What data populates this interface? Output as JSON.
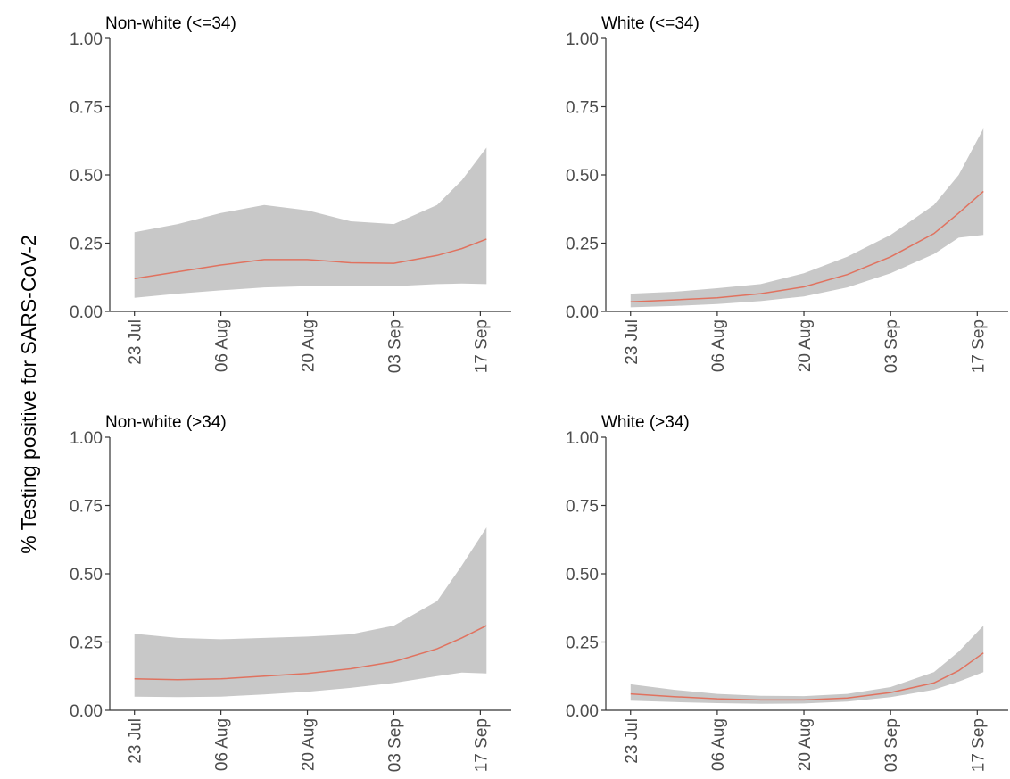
{
  "ylabel": "% Testing positive for SARS-CoV-2",
  "chart_data": [
    {
      "type": "area",
      "title": "Non-white (<=34)",
      "ylim": [
        0,
        1
      ],
      "yticks": [
        "0.00",
        "0.25",
        "0.50",
        "0.75",
        "1.00"
      ],
      "xlim": [
        "2020-07-19",
        "2020-09-22"
      ],
      "xticks": [
        "23 Jul",
        "06 Aug",
        "20 Aug",
        "03 Sep",
        "17 Sep"
      ],
      "x": [
        "2020-07-23",
        "2020-07-30",
        "2020-08-06",
        "2020-08-13",
        "2020-08-20",
        "2020-08-27",
        "2020-09-03",
        "2020-09-10",
        "2020-09-14",
        "2020-09-18"
      ],
      "fit": [
        0.12,
        0.145,
        0.17,
        0.19,
        0.19,
        0.178,
        0.176,
        0.205,
        0.23,
        0.265
      ],
      "lower": [
        0.05,
        0.065,
        0.077,
        0.088,
        0.092,
        0.092,
        0.092,
        0.1,
        0.102,
        0.1
      ],
      "upper": [
        0.29,
        0.32,
        0.36,
        0.39,
        0.37,
        0.33,
        0.32,
        0.39,
        0.48,
        0.6
      ]
    },
    {
      "type": "area",
      "title": "White (<=34)",
      "ylim": [
        0,
        1
      ],
      "yticks": [
        "0.00",
        "0.25",
        "0.50",
        "0.75",
        "1.00"
      ],
      "xlim": [
        "2020-07-19",
        "2020-09-22"
      ],
      "xticks": [
        "23 Jul",
        "06 Aug",
        "20 Aug",
        "03 Sep",
        "17 Sep"
      ],
      "x": [
        "2020-07-23",
        "2020-07-30",
        "2020-08-06",
        "2020-08-13",
        "2020-08-20",
        "2020-08-27",
        "2020-09-03",
        "2020-09-10",
        "2020-09-14",
        "2020-09-18"
      ],
      "fit": [
        0.035,
        0.042,
        0.05,
        0.065,
        0.09,
        0.135,
        0.2,
        0.285,
        0.36,
        0.44
      ],
      "lower": [
        0.015,
        0.02,
        0.027,
        0.038,
        0.055,
        0.088,
        0.14,
        0.21,
        0.27,
        0.28
      ],
      "upper": [
        0.065,
        0.072,
        0.085,
        0.1,
        0.14,
        0.2,
        0.28,
        0.39,
        0.5,
        0.67
      ]
    },
    {
      "type": "area",
      "title": "Non-white (>34)",
      "ylim": [
        0,
        1
      ],
      "yticks": [
        "0.00",
        "0.25",
        "0.50",
        "0.75",
        "1.00"
      ],
      "xlim": [
        "2020-07-19",
        "2020-09-22"
      ],
      "xticks": [
        "23 Jul",
        "06 Aug",
        "20 Aug",
        "03 Sep",
        "17 Sep"
      ],
      "x": [
        "2020-07-23",
        "2020-07-30",
        "2020-08-06",
        "2020-08-13",
        "2020-08-20",
        "2020-08-27",
        "2020-09-03",
        "2020-09-10",
        "2020-09-14",
        "2020-09-18"
      ],
      "fit": [
        0.115,
        0.112,
        0.115,
        0.125,
        0.135,
        0.152,
        0.178,
        0.225,
        0.265,
        0.31
      ],
      "lower": [
        0.05,
        0.048,
        0.05,
        0.058,
        0.068,
        0.082,
        0.1,
        0.125,
        0.138,
        0.135
      ],
      "upper": [
        0.28,
        0.265,
        0.26,
        0.265,
        0.27,
        0.278,
        0.31,
        0.4,
        0.53,
        0.67
      ]
    },
    {
      "type": "area",
      "title": "White (>34)",
      "ylim": [
        0,
        1
      ],
      "yticks": [
        "0.00",
        "0.25",
        "0.50",
        "0.75",
        "1.00"
      ],
      "xlim": [
        "2020-07-19",
        "2020-09-22"
      ],
      "xticks": [
        "23 Jul",
        "06 Aug",
        "20 Aug",
        "03 Sep",
        "17 Sep"
      ],
      "x": [
        "2020-07-23",
        "2020-07-30",
        "2020-08-06",
        "2020-08-13",
        "2020-08-20",
        "2020-08-27",
        "2020-09-03",
        "2020-09-10",
        "2020-09-14",
        "2020-09-18"
      ],
      "fit": [
        0.06,
        0.05,
        0.042,
        0.038,
        0.038,
        0.045,
        0.065,
        0.1,
        0.145,
        0.21
      ],
      "lower": [
        0.035,
        0.03,
        0.026,
        0.024,
        0.025,
        0.032,
        0.048,
        0.075,
        0.105,
        0.14
      ],
      "upper": [
        0.095,
        0.075,
        0.06,
        0.053,
        0.052,
        0.06,
        0.085,
        0.14,
        0.215,
        0.31
      ]
    }
  ]
}
